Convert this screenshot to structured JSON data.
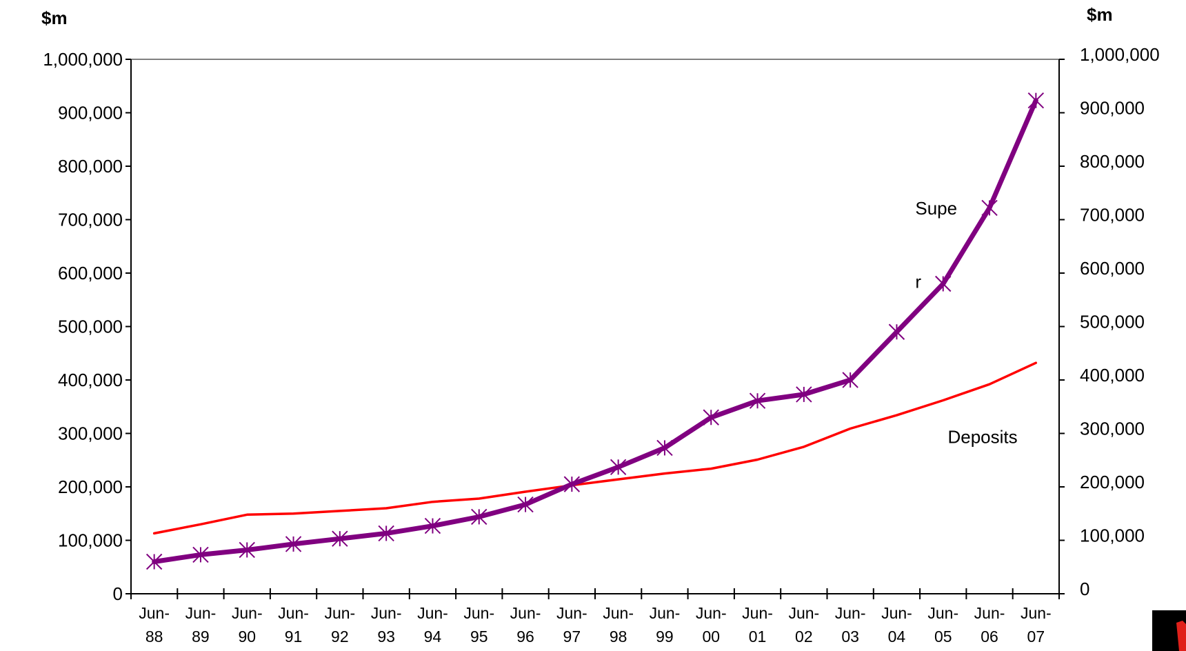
{
  "chart_data": {
    "type": "line",
    "left_unit": "$m",
    "right_unit": "$m",
    "ylim": [
      0,
      1000000
    ],
    "y_ticks": [
      "0",
      "100,000",
      "200,000",
      "300,000",
      "400,000",
      "500,000",
      "600,000",
      "700,000",
      "800,000",
      "900,000",
      "1,000,000"
    ],
    "y_tick_values": [
      0,
      100000,
      200000,
      300000,
      400000,
      500000,
      600000,
      700000,
      800000,
      900000,
      1000000
    ],
    "categories": [
      [
        "Jun-",
        "88"
      ],
      [
        "Jun-",
        "89"
      ],
      [
        "Jun-",
        "90"
      ],
      [
        "Jun-",
        "91"
      ],
      [
        "Jun-",
        "92"
      ],
      [
        "Jun-",
        "93"
      ],
      [
        "Jun-",
        "94"
      ],
      [
        "Jun-",
        "95"
      ],
      [
        "Jun-",
        "96"
      ],
      [
        "Jun-",
        "97"
      ],
      [
        "Jun-",
        "98"
      ],
      [
        "Jun-",
        "99"
      ],
      [
        "Jun-",
        "00"
      ],
      [
        "Jun-",
        "01"
      ],
      [
        "Jun-",
        "02"
      ],
      [
        "Jun-",
        "03"
      ],
      [
        "Jun-",
        "04"
      ],
      [
        "Jun-",
        "05"
      ],
      [
        "Jun-",
        "06"
      ],
      [
        "Jun-",
        "07"
      ]
    ],
    "series": [
      {
        "name": "Supe r",
        "color": "#800080",
        "marker": "asterisk",
        "values": [
          60000,
          73000,
          82000,
          93000,
          103000,
          113000,
          127000,
          144000,
          167000,
          205000,
          237000,
          273000,
          330000,
          361000,
          373000,
          400000,
          490000,
          580000,
          722000,
          923000
        ]
      },
      {
        "name": "Deposits",
        "color": "#ff0000",
        "marker": "none",
        "values": [
          113000,
          130000,
          148000,
          150000,
          155000,
          160000,
          172000,
          178000,
          191000,
          203000,
          214000,
          225000,
          234000,
          251000,
          275000,
          309000,
          334000,
          362000,
          392000,
          432000
        ]
      }
    ],
    "annotations": [
      {
        "text": "Supe",
        "x_index": 16.9,
        "y": 710000
      },
      {
        "text": "r",
        "x_index": 16.9,
        "y": 572000
      },
      {
        "text": "Deposits",
        "x_index": 17.6,
        "y": 282000
      }
    ],
    "grid": false,
    "legend": "none"
  }
}
